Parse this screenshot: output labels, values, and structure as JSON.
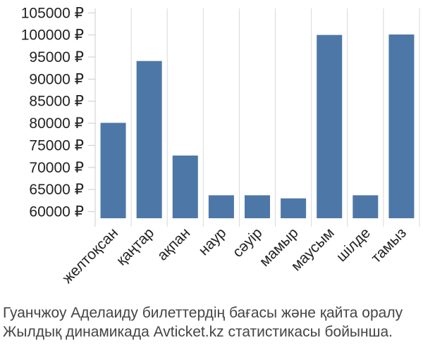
{
  "chart_data": {
    "type": "bar",
    "categories": [
      "желтоқсан",
      "қаңтар",
      "ақпан",
      "наур",
      "сәуір",
      "мамыр",
      "маусым",
      "шілде",
      "тамыз"
    ],
    "values": [
      80100,
      94100,
      72700,
      63700,
      63700,
      63000,
      100000,
      63700,
      100100
    ],
    "y_ticks": [
      "105000 ₽",
      "100000 ₽",
      "95000 ₽",
      "90000 ₽",
      "85000 ₽",
      "80000 ₽",
      "75000 ₽",
      "70000 ₽",
      "65000 ₽",
      "60000 ₽"
    ],
    "ylim": [
      58500,
      106000
    ],
    "grid": "vertical",
    "bar_color": "#4d77a7"
  },
  "caption": {
    "line1": "Гуанчжоу Аделаиду билеттердің бағасы және қайта оралу",
    "line2": "Жылдық динамикада Avticket.kz статистикасы бойынша."
  }
}
